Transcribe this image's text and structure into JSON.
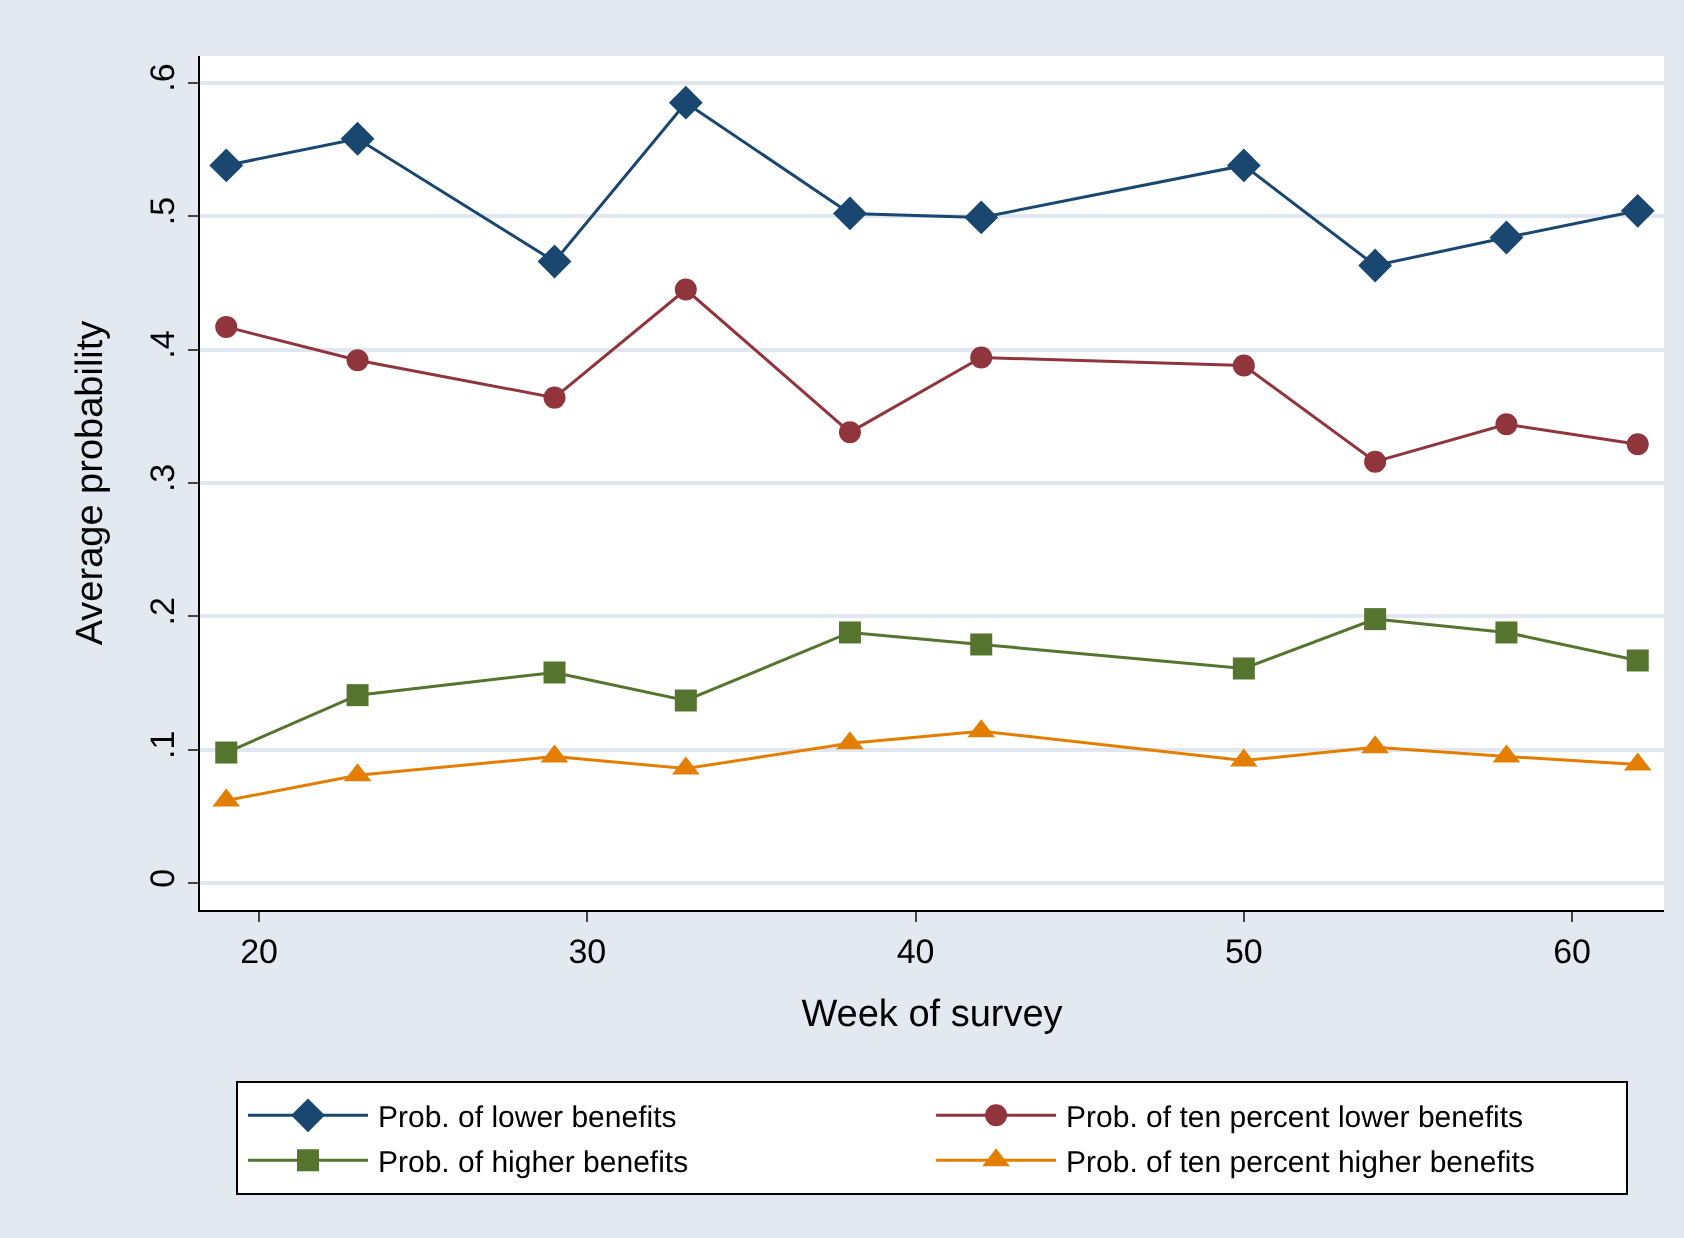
{
  "chart_data": {
    "type": "line",
    "xlabel": "Week of survey",
    "ylabel": "Average probability",
    "x": [
      19,
      23,
      29,
      33,
      38,
      42,
      50,
      54,
      58,
      62
    ],
    "xlim": [
      18.2,
      62.8
    ],
    "xticks": [
      20,
      30,
      40,
      50,
      60
    ],
    "ylim": [
      -0.02,
      0.62
    ],
    "yticks": [
      {
        "value": 0,
        "label": "0"
      },
      {
        "value": 0.1,
        "label": ".1"
      },
      {
        "value": 0.2,
        "label": ".2"
      },
      {
        "value": 0.3,
        "label": ".3"
      },
      {
        "value": 0.4,
        "label": ".4"
      },
      {
        "value": 0.5,
        "label": ".5"
      },
      {
        "value": 0.6,
        "label": ".6"
      }
    ],
    "grid": "y",
    "legend": "bottom",
    "series": [
      {
        "name": "Prob. of lower benefits",
        "color": "#1a476f",
        "marker": "diamond",
        "values": [
          0.538,
          0.558,
          0.466,
          0.585,
          0.502,
          0.499,
          0.538,
          0.463,
          0.484,
          0.504
        ]
      },
      {
        "name": "Prob. of ten percent lower benefits",
        "color": "#90353b",
        "marker": "circle",
        "values": [
          0.417,
          0.392,
          0.364,
          0.445,
          0.338,
          0.394,
          0.388,
          0.316,
          0.344,
          0.329
        ]
      },
      {
        "name": "Prob. of higher benefits",
        "color": "#55752f",
        "marker": "square",
        "values": [
          0.098,
          0.141,
          0.158,
          0.137,
          0.188,
          0.179,
          0.161,
          0.198,
          0.188,
          0.167
        ]
      },
      {
        "name": "Prob. of ten percent higher benefits",
        "color": "#e37e00",
        "marker": "triangle",
        "values": [
          0.062,
          0.081,
          0.095,
          0.086,
          0.105,
          0.114,
          0.092,
          0.102,
          0.095,
          0.089
        ]
      }
    ]
  }
}
